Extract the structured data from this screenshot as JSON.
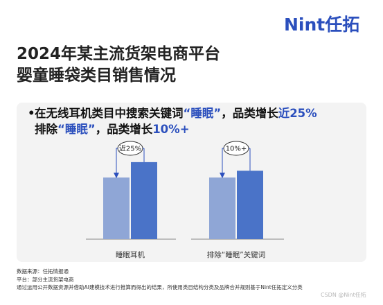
{
  "brand": {
    "logo_text": "Nint任拓"
  },
  "title": {
    "line1": "2024年某主流货架电商平台",
    "line2": "婴童睡袋类目销售情况"
  },
  "headline": {
    "line1_prefix": "在无线耳机类目中搜索关键词",
    "line1_highlight": "“睡眠”",
    "line1_mid": "，品类增长",
    "line1_value": "近25%",
    "line2_prefix": "排除",
    "line2_highlight": "“睡眠”",
    "line2_mid": "，品类增长",
    "line2_value": "10%+"
  },
  "chart_data": {
    "type": "bar",
    "categories": [
      "睡眠耳机",
      "排除“睡眠”关键词"
    ],
    "series": [
      {
        "values": [
          100,
          100
        ],
        "color": "#8fa6d6"
      },
      {
        "values": [
          125,
          111
        ],
        "color": "#4a73c8"
      }
    ],
    "annotations": [
      "近25%",
      "10%+"
    ],
    "ylim": [
      0,
      135
    ],
    "axis": {
      "x": true,
      "y": false
    },
    "grid": false
  },
  "footer": {
    "source": "数据来源：任拓情报通",
    "platform": "平台：部分主流货架电商",
    "note": "通过运用公开数据资源并借助AI建模技术进行推算而得出的结果，所使用类目结构分类及品牌合并规则基于Nint任拓定义分类"
  },
  "watermark": "CSDN @Nint任拓"
}
